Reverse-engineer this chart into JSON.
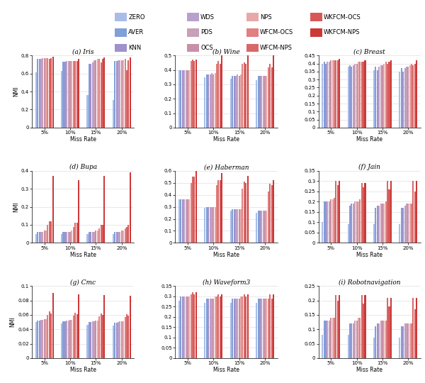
{
  "miss_rates": [
    "5%",
    "10%",
    "15%",
    "20%"
  ],
  "colors": {
    "ZERO": "#aabde8",
    "AVER": "#7fa0d8",
    "KNN": "#a090cc",
    "WDS": "#b8a0cc",
    "PDS": "#c8a0b8",
    "OCS": "#c890a8",
    "NPS": "#e8a8a8",
    "WFCM-OCS": "#e08080",
    "WFCM-NPS": "#d86868",
    "WKFCM-OCS": "#d85858",
    "WKFCM-NPS": "#cc3838"
  },
  "datasets": {
    "Iris": {
      "ylim": [
        0,
        0.8
      ],
      "yticks": [
        0,
        0.2,
        0.4,
        0.6,
        0.8
      ],
      "data": {
        "5%": [
          0.61,
          0.76,
          0.76,
          0.76,
          0.77,
          0.77,
          0.77,
          0.77,
          0.76,
          0.77,
          0.79
        ],
        "10%": [
          0.63,
          0.73,
          0.73,
          0.74,
          0.74,
          0.74,
          0.74,
          0.74,
          0.74,
          0.74,
          0.76
        ],
        "15%": [
          0.36,
          0.71,
          0.71,
          0.72,
          0.75,
          0.75,
          0.76,
          0.76,
          0.72,
          0.76,
          0.78
        ],
        "20%": [
          0.31,
          0.74,
          0.74,
          0.75,
          0.75,
          0.75,
          0.75,
          0.76,
          0.64,
          0.75,
          0.78
        ]
      }
    },
    "Wine": {
      "ylim": [
        0,
        0.5
      ],
      "yticks": [
        0,
        0.1,
        0.2,
        0.3,
        0.4,
        0.5
      ],
      "data": {
        "5%": [
          0.4,
          0.4,
          0.4,
          0.4,
          0.4,
          0.4,
          0.4,
          0.46,
          0.47,
          0.46,
          0.47
        ],
        "10%": [
          0.35,
          0.37,
          0.37,
          0.37,
          0.38,
          0.37,
          0.38,
          0.44,
          0.46,
          0.44,
          0.52
        ],
        "15%": [
          0.34,
          0.36,
          0.36,
          0.36,
          0.37,
          0.36,
          0.37,
          0.44,
          0.45,
          0.44,
          0.51
        ],
        "20%": [
          0.33,
          0.36,
          0.36,
          0.36,
          0.36,
          0.36,
          0.36,
          0.42,
          0.44,
          0.42,
          0.5
        ]
      }
    },
    "Breast": {
      "ylim": [
        0,
        0.45
      ],
      "yticks": [
        0,
        0.05,
        0.1,
        0.15,
        0.2,
        0.25,
        0.3,
        0.35,
        0.4,
        0.45
      ],
      "data": {
        "5%": [
          0.4,
          0.41,
          0.4,
          0.41,
          0.41,
          0.42,
          0.42,
          0.42,
          0.42,
          0.42,
          0.43
        ],
        "10%": [
          0.38,
          0.39,
          0.38,
          0.39,
          0.4,
          0.4,
          0.41,
          0.41,
          0.41,
          0.41,
          0.42
        ],
        "15%": [
          0.36,
          0.38,
          0.36,
          0.38,
          0.39,
          0.39,
          0.4,
          0.41,
          0.4,
          0.41,
          0.42
        ],
        "20%": [
          0.35,
          0.37,
          0.35,
          0.37,
          0.38,
          0.38,
          0.39,
          0.4,
          0.39,
          0.4,
          0.42
        ]
      }
    },
    "Bupa": {
      "ylim": [
        0,
        0.4
      ],
      "yticks": [
        0,
        0.1,
        0.2,
        0.3,
        0.4
      ],
      "data": {
        "5%": [
          0.05,
          0.06,
          0.06,
          0.06,
          0.06,
          0.07,
          0.07,
          0.1,
          0.12,
          0.12,
          0.37
        ],
        "10%": [
          0.05,
          0.06,
          0.06,
          0.06,
          0.06,
          0.06,
          0.07,
          0.09,
          0.11,
          0.11,
          0.35
        ],
        "15%": [
          0.05,
          0.06,
          0.06,
          0.06,
          0.06,
          0.07,
          0.07,
          0.08,
          0.1,
          0.1,
          0.37
        ],
        "20%": [
          0.05,
          0.06,
          0.06,
          0.06,
          0.06,
          0.07,
          0.07,
          0.08,
          0.09,
          0.1,
          0.39
        ]
      }
    },
    "Haberman": {
      "ylim": [
        0,
        0.6
      ],
      "yticks": [
        0,
        0.1,
        0.2,
        0.3,
        0.4,
        0.5,
        0.6
      ],
      "data": {
        "5%": [
          0.36,
          0.36,
          0.36,
          0.36,
          0.36,
          0.36,
          0.36,
          0.5,
          0.55,
          0.55,
          0.62
        ],
        "10%": [
          0.29,
          0.3,
          0.3,
          0.3,
          0.3,
          0.3,
          0.3,
          0.48,
          0.52,
          0.52,
          0.58
        ],
        "15%": [
          0.27,
          0.28,
          0.28,
          0.28,
          0.28,
          0.28,
          0.28,
          0.45,
          0.51,
          0.5,
          0.56
        ],
        "20%": [
          0.25,
          0.27,
          0.27,
          0.27,
          0.27,
          0.27,
          0.27,
          0.43,
          0.49,
          0.48,
          0.52
        ]
      }
    },
    "Jain": {
      "ylim": [
        0,
        0.35
      ],
      "yticks": [
        0,
        0.05,
        0.1,
        0.15,
        0.2,
        0.25,
        0.3,
        0.35
      ],
      "data": {
        "5%": [
          0.1,
          0.2,
          0.2,
          0.2,
          0.2,
          0.21,
          0.21,
          0.22,
          0.3,
          0.28,
          0.3
        ],
        "10%": [
          0.09,
          0.18,
          0.19,
          0.19,
          0.2,
          0.2,
          0.2,
          0.21,
          0.29,
          0.27,
          0.29
        ],
        "15%": [
          0.09,
          0.17,
          0.18,
          0.18,
          0.19,
          0.19,
          0.19,
          0.2,
          0.3,
          0.26,
          0.3
        ],
        "20%": [
          0.09,
          0.17,
          0.17,
          0.18,
          0.19,
          0.19,
          0.19,
          0.19,
          0.3,
          0.25,
          0.3
        ]
      }
    },
    "Cmc": {
      "ylim": [
        0,
        0.1
      ],
      "yticks": [
        0,
        0.02,
        0.04,
        0.06,
        0.08,
        0.1
      ],
      "data": {
        "5%": [
          0.05,
          0.052,
          0.052,
          0.053,
          0.053,
          0.054,
          0.054,
          0.06,
          0.065,
          0.062,
          0.09
        ],
        "10%": [
          0.048,
          0.051,
          0.051,
          0.052,
          0.052,
          0.053,
          0.053,
          0.059,
          0.063,
          0.061,
          0.089
        ],
        "15%": [
          0.046,
          0.05,
          0.05,
          0.051,
          0.051,
          0.052,
          0.052,
          0.058,
          0.062,
          0.06,
          0.088
        ],
        "20%": [
          0.045,
          0.049,
          0.049,
          0.05,
          0.051,
          0.051,
          0.051,
          0.057,
          0.061,
          0.059,
          0.087
        ]
      }
    },
    "Waveform3": {
      "ylim": [
        0,
        0.35
      ],
      "yticks": [
        0,
        0.05,
        0.1,
        0.15,
        0.2,
        0.25,
        0.3,
        0.35
      ],
      "data": {
        "5%": [
          0.28,
          0.3,
          0.3,
          0.3,
          0.3,
          0.3,
          0.3,
          0.31,
          0.32,
          0.31,
          0.32
        ],
        "10%": [
          0.27,
          0.29,
          0.29,
          0.29,
          0.29,
          0.29,
          0.3,
          0.3,
          0.31,
          0.3,
          0.31
        ],
        "15%": [
          0.27,
          0.29,
          0.29,
          0.29,
          0.29,
          0.29,
          0.3,
          0.3,
          0.31,
          0.3,
          0.31
        ],
        "20%": [
          0.27,
          0.29,
          0.29,
          0.29,
          0.29,
          0.29,
          0.29,
          0.29,
          0.31,
          0.29,
          0.31
        ]
      }
    },
    "Robotnavigation": {
      "ylim": [
        0,
        0.25
      ],
      "yticks": [
        0,
        0.05,
        0.1,
        0.15,
        0.2,
        0.25
      ],
      "data": {
        "5%": [
          0.08,
          0.13,
          0.13,
          0.13,
          0.13,
          0.14,
          0.14,
          0.14,
          0.22,
          0.2,
          0.22
        ],
        "10%": [
          0.08,
          0.12,
          0.12,
          0.12,
          0.13,
          0.13,
          0.14,
          0.14,
          0.22,
          0.19,
          0.22
        ],
        "15%": [
          0.07,
          0.11,
          0.12,
          0.12,
          0.13,
          0.13,
          0.13,
          0.13,
          0.21,
          0.18,
          0.21
        ],
        "20%": [
          0.07,
          0.11,
          0.11,
          0.12,
          0.12,
          0.12,
          0.12,
          0.12,
          0.21,
          0.17,
          0.21
        ]
      }
    }
  },
  "method_order": [
    "ZERO",
    "AVER",
    "KNN",
    "WDS",
    "PDS",
    "OCS",
    "NPS",
    "WFCM-OCS",
    "WFCM-NPS",
    "WKFCM-OCS",
    "WKFCM-NPS"
  ],
  "subplot_layout": [
    [
      "Iris",
      "Wine",
      "Breast"
    ],
    [
      "Bupa",
      "Haberman",
      "Jain"
    ],
    [
      "Cmc",
      "Waveform3",
      "Robotnavigation"
    ]
  ],
  "subplot_labels": [
    [
      "(a) Iris",
      "(b) Wine",
      "(c) Breast"
    ],
    [
      "(d) Bupa",
      "(e) Haberman",
      "(f) Jain"
    ],
    [
      "(g) Cmc",
      "(h) Waveform3",
      "(i) Robotnavigation"
    ]
  ],
  "legend_rows": [
    [
      "ZERO",
      "WDS",
      "NPS",
      "WKFCM-OCS"
    ],
    [
      "AVER",
      "PDS",
      "WFCM-OCS",
      "WKFCM-NPS"
    ],
    [
      "KNN",
      "OCS",
      "WFCM-NPS",
      null
    ]
  ]
}
